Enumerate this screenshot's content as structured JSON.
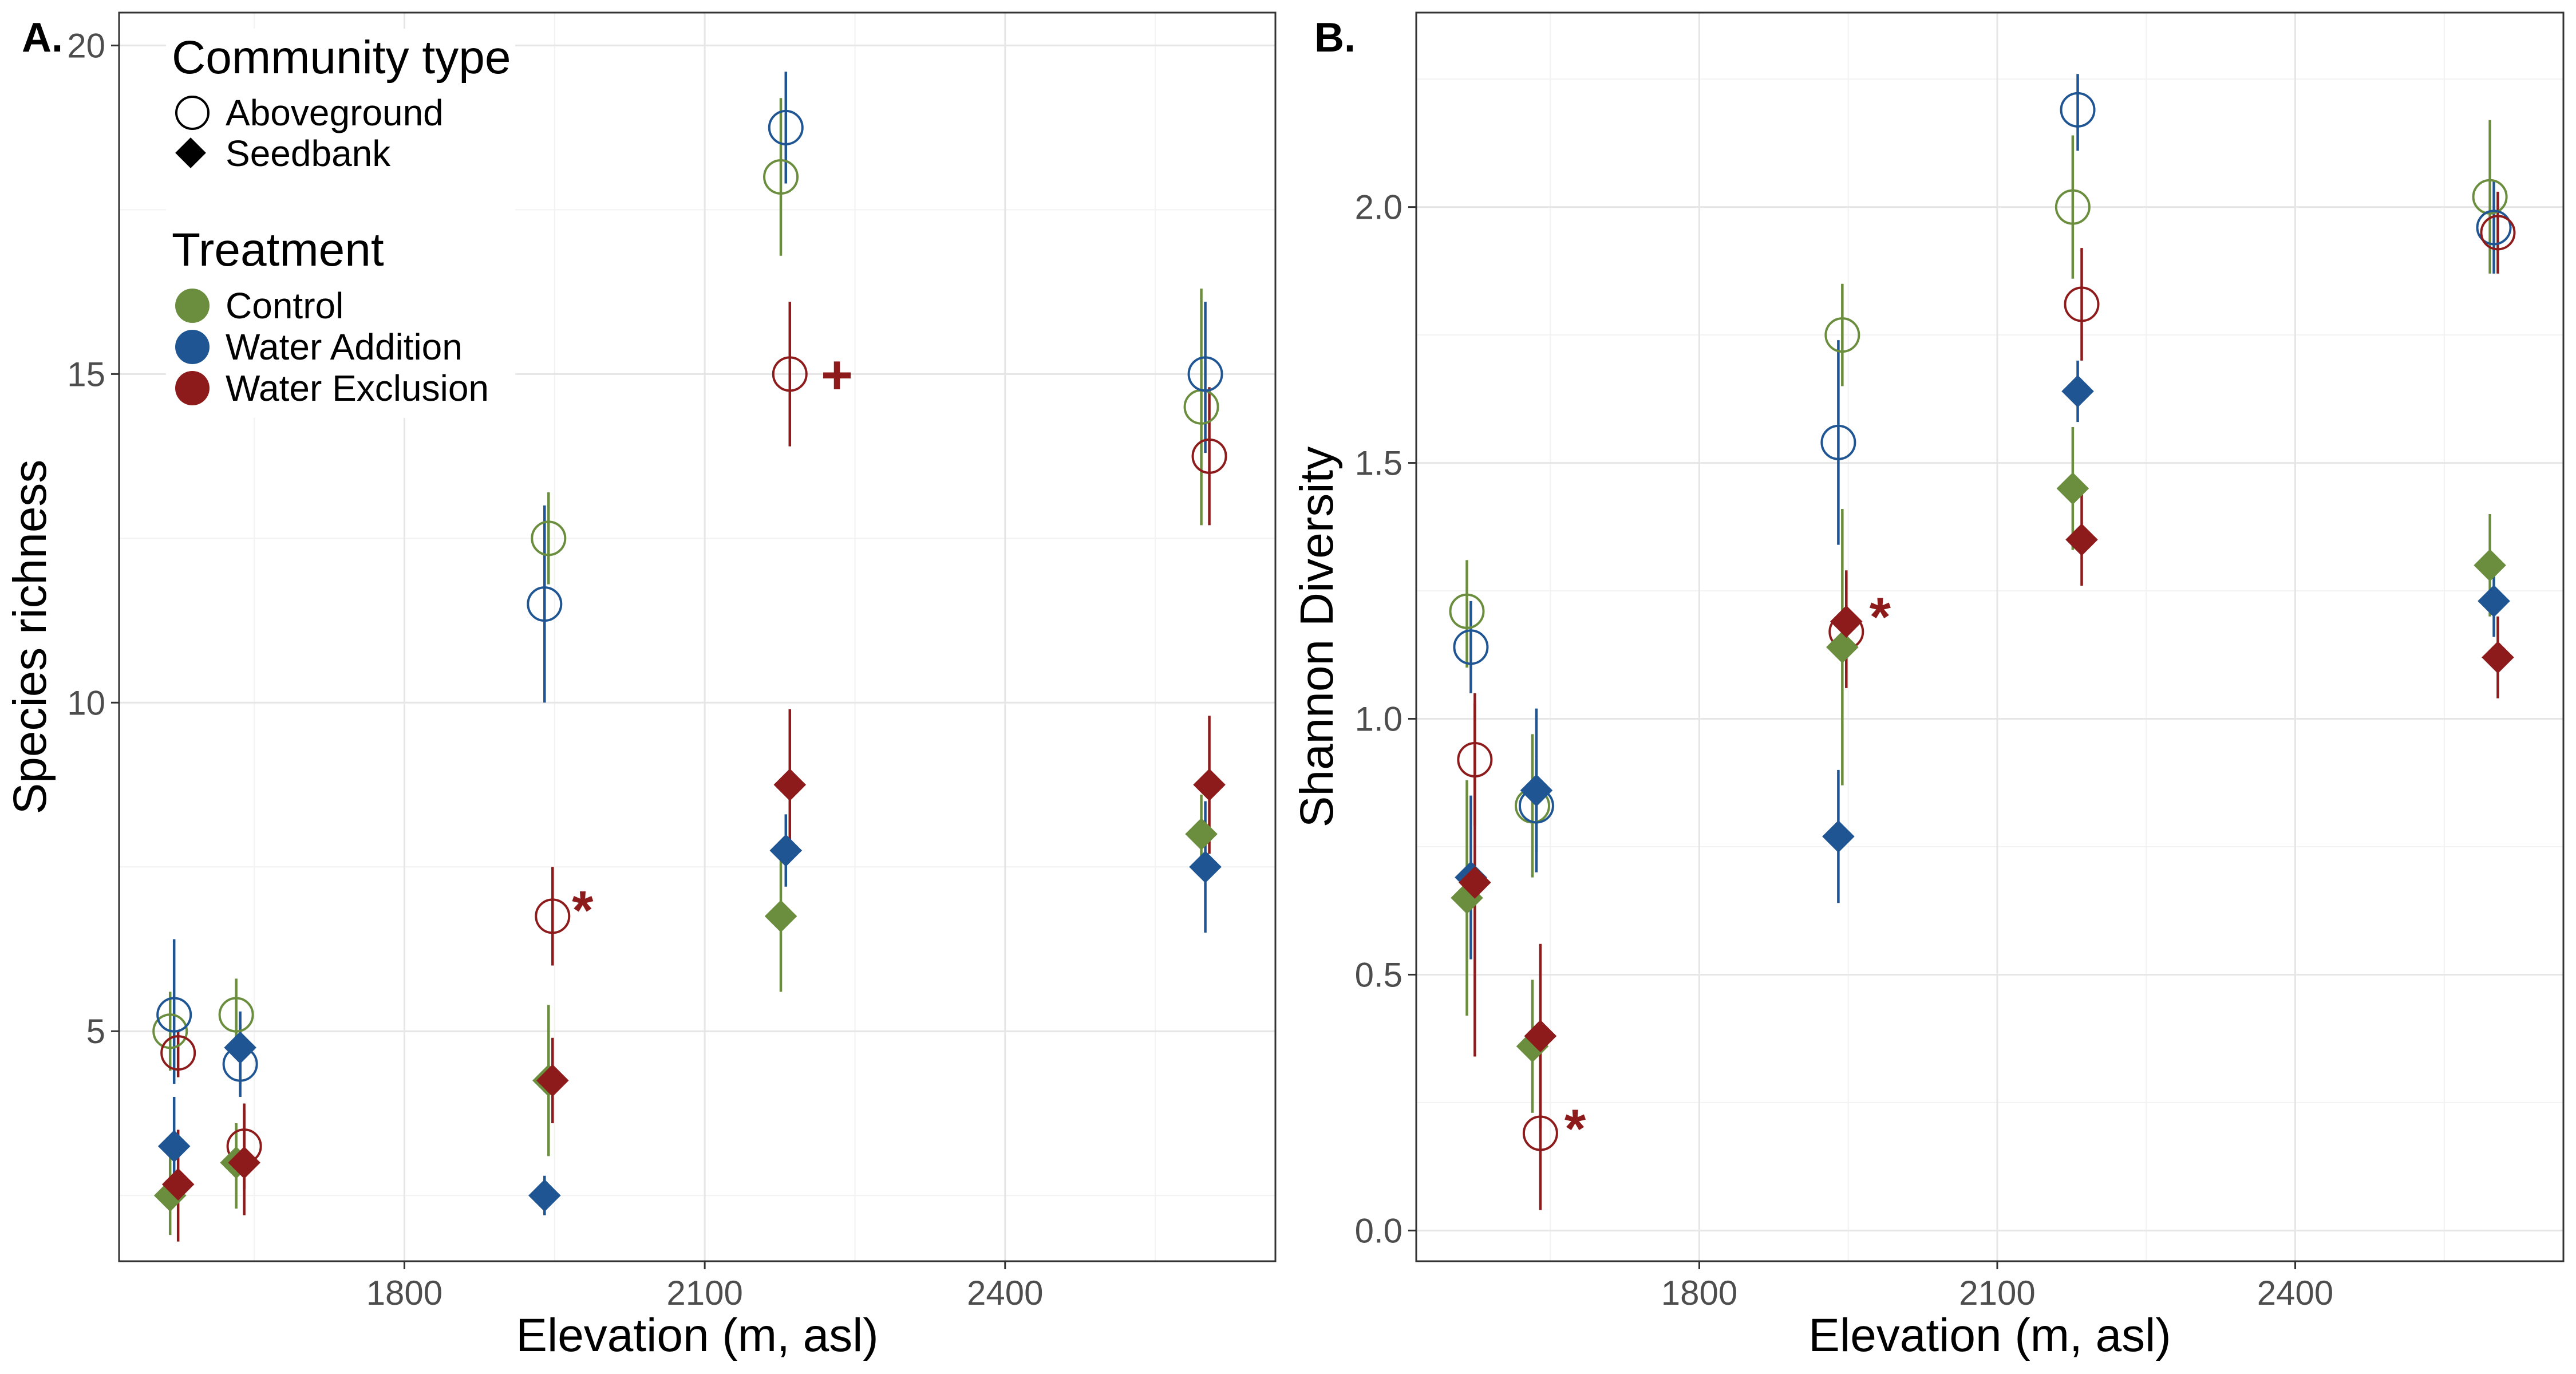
{
  "colors": {
    "Control": "#6b8e3e",
    "Water Addition": "#1f5592",
    "Water Exclusion": "#8e1b1b"
  },
  "legend": {
    "community_title": "Community type",
    "community_items": [
      "Aboveground",
      "Seedbank"
    ],
    "treatment_title": "Treatment",
    "treatment_items": [
      "Control",
      "Water Addition",
      "Water Exclusion"
    ]
  },
  "chart_data": [
    {
      "panel_label": "A.",
      "type": "scatter",
      "xlabel": "Elevation (m, asl)",
      "ylabel": "Species richness",
      "xticks": [
        "1800",
        "2100",
        "2400"
      ],
      "yticks": [
        "5",
        "10",
        "15",
        "20"
      ],
      "xlim": [
        1515,
        2670
      ],
      "ylim": [
        1.5,
        20.5
      ],
      "grid": true,
      "legend_position": "top-left",
      "series": [
        {
          "name": "Control",
          "community": "Aboveground",
          "points": [
            {
              "x": 1566,
              "y": 5.0,
              "lo": 4.4,
              "hi": 5.6
            },
            {
              "x": 1632,
              "y": 5.25,
              "lo": 4.7,
              "hi": 5.8
            },
            {
              "x": 1944,
              "y": 12.5,
              "lo": 11.8,
              "hi": 13.2
            },
            {
              "x": 2176,
              "y": 18.0,
              "lo": 16.8,
              "hi": 19.2
            },
            {
              "x": 2596,
              "y": 14.5,
              "lo": 12.7,
              "hi": 16.3
            }
          ]
        },
        {
          "name": "Water Addition",
          "community": "Aboveground",
          "points": [
            {
              "x": 1570,
              "y": 5.25,
              "lo": 4.2,
              "hi": 6.4
            },
            {
              "x": 1636,
              "y": 4.5,
              "lo": 4.0,
              "hi": 5.1
            },
            {
              "x": 1940,
              "y": 11.5,
              "lo": 10.0,
              "hi": 13.0
            },
            {
              "x": 2181,
              "y": 18.75,
              "lo": 17.9,
              "hi": 19.6
            },
            {
              "x": 2600,
              "y": 15.0,
              "lo": 13.8,
              "hi": 16.1
            }
          ]
        },
        {
          "name": "Water Exclusion",
          "community": "Aboveground",
          "points": [
            {
              "x": 1574,
              "y": 4.67,
              "lo": 4.3,
              "hi": 5.0
            },
            {
              "x": 1640,
              "y": 3.25,
              "lo": 2.6,
              "hi": 3.9
            },
            {
              "x": 1948,
              "y": 6.75,
              "lo": 6.0,
              "hi": 7.5
            },
            {
              "x": 2185,
              "y": 15.0,
              "lo": 13.9,
              "hi": 16.1
            },
            {
              "x": 2604,
              "y": 13.75,
              "lo": 12.7,
              "hi": 14.8
            }
          ]
        },
        {
          "name": "Control",
          "community": "Seedbank",
          "points": [
            {
              "x": 1566,
              "y": 2.5,
              "lo": 1.9,
              "hi": 3.1
            },
            {
              "x": 1632,
              "y": 3.0,
              "lo": 2.3,
              "hi": 3.6
            },
            {
              "x": 1944,
              "y": 4.25,
              "lo": 3.1,
              "hi": 5.4
            },
            {
              "x": 2176,
              "y": 6.75,
              "lo": 5.6,
              "hi": 7.9
            },
            {
              "x": 2596,
              "y": 8.0,
              "lo": 7.4,
              "hi": 8.6
            }
          ]
        },
        {
          "name": "Water Addition",
          "community": "Seedbank",
          "points": [
            {
              "x": 1570,
              "y": 3.25,
              "lo": 2.6,
              "hi": 4.0
            },
            {
              "x": 1636,
              "y": 4.75,
              "lo": 4.2,
              "hi": 5.3
            },
            {
              "x": 1940,
              "y": 2.5,
              "lo": 2.2,
              "hi": 2.8
            },
            {
              "x": 2181,
              "y": 7.75,
              "lo": 7.2,
              "hi": 8.3
            },
            {
              "x": 2600,
              "y": 7.5,
              "lo": 6.5,
              "hi": 8.5
            }
          ]
        },
        {
          "name": "Water Exclusion",
          "community": "Seedbank",
          "points": [
            {
              "x": 1574,
              "y": 2.67,
              "lo": 1.8,
              "hi": 3.5
            },
            {
              "x": 1640,
              "y": 3.0,
              "lo": 2.2,
              "hi": 3.8
            },
            {
              "x": 1948,
              "y": 4.25,
              "lo": 3.6,
              "hi": 4.9
            },
            {
              "x": 2185,
              "y": 8.75,
              "lo": 7.6,
              "hi": 9.9
            },
            {
              "x": 2604,
              "y": 8.75,
              "lo": 7.7,
              "hi": 9.8
            }
          ]
        }
      ],
      "annotations": [
        {
          "text": "*",
          "x": 1978,
          "y": 6.85,
          "series": "Water Exclusion"
        },
        {
          "text": "+",
          "x": 2232,
          "y": 15.0,
          "series": "Water Exclusion"
        }
      ]
    },
    {
      "panel_label": "B.",
      "type": "scatter",
      "xlabel": "Elevation (m, asl)",
      "ylabel": "Shannon Diversity",
      "xticks": [
        "1800",
        "2100",
        "2400"
      ],
      "yticks": [
        "0.0",
        "0.5",
        "1.0",
        "1.5",
        "2.0"
      ],
      "xlim": [
        1515,
        2670
      ],
      "ylim": [
        -0.06,
        2.38
      ],
      "grid": true,
      "legend_position": "none",
      "series": [
        {
          "name": "Control",
          "community": "Aboveground",
          "points": [
            {
              "x": 1566,
              "y": 1.21,
              "lo": 1.1,
              "hi": 1.31
            },
            {
              "x": 1632,
              "y": 0.83,
              "lo": 0.69,
              "hi": 0.97
            },
            {
              "x": 1944,
              "y": 1.75,
              "lo": 1.65,
              "hi": 1.85
            },
            {
              "x": 2176,
              "y": 2.0,
              "lo": 1.86,
              "hi": 2.14
            },
            {
              "x": 2596,
              "y": 2.02,
              "lo": 1.87,
              "hi": 2.17
            }
          ]
        },
        {
          "name": "Water Addition",
          "community": "Aboveground",
          "points": [
            {
              "x": 1570,
              "y": 1.14,
              "lo": 1.05,
              "hi": 1.23
            },
            {
              "x": 1636,
              "y": 0.83,
              "lo": 0.74,
              "hi": 0.92
            },
            {
              "x": 1940,
              "y": 1.54,
              "lo": 1.34,
              "hi": 1.74
            },
            {
              "x": 2181,
              "y": 2.19,
              "lo": 2.11,
              "hi": 2.26
            },
            {
              "x": 2600,
              "y": 1.96,
              "lo": 1.87,
              "hi": 2.05
            }
          ]
        },
        {
          "name": "Water Exclusion",
          "community": "Aboveground",
          "points": [
            {
              "x": 1574,
              "y": 0.92,
              "lo": 0.79,
              "hi": 1.05
            },
            {
              "x": 1640,
              "y": 0.19,
              "lo": 0.04,
              "hi": 0.35
            },
            {
              "x": 1948,
              "y": 1.17,
              "lo": 1.06,
              "hi": 1.28
            },
            {
              "x": 2185,
              "y": 1.81,
              "lo": 1.7,
              "hi": 1.92
            },
            {
              "x": 2604,
              "y": 1.95,
              "lo": 1.87,
              "hi": 2.03
            }
          ]
        },
        {
          "name": "Control",
          "community": "Seedbank",
          "points": [
            {
              "x": 1566,
              "y": 0.65,
              "lo": 0.42,
              "hi": 0.88
            },
            {
              "x": 1632,
              "y": 0.36,
              "lo": 0.23,
              "hi": 0.49
            },
            {
              "x": 1944,
              "y": 1.14,
              "lo": 0.87,
              "hi": 1.41
            },
            {
              "x": 2176,
              "y": 1.45,
              "lo": 1.33,
              "hi": 1.57
            },
            {
              "x": 2596,
              "y": 1.3,
              "lo": 1.2,
              "hi": 1.4
            }
          ]
        },
        {
          "name": "Water Addition",
          "community": "Seedbank",
          "points": [
            {
              "x": 1570,
              "y": 0.69,
              "lo": 0.53,
              "hi": 0.85
            },
            {
              "x": 1636,
              "y": 0.86,
              "lo": 0.7,
              "hi": 1.02
            },
            {
              "x": 1940,
              "y": 0.77,
              "lo": 0.64,
              "hi": 0.9
            },
            {
              "x": 2181,
              "y": 1.64,
              "lo": 1.58,
              "hi": 1.7
            },
            {
              "x": 2600,
              "y": 1.23,
              "lo": 1.16,
              "hi": 1.3
            }
          ]
        },
        {
          "name": "Water Exclusion",
          "community": "Seedbank",
          "points": [
            {
              "x": 1574,
              "y": 0.68,
              "lo": 0.34,
              "hi": 1.03
            },
            {
              "x": 1640,
              "y": 0.38,
              "lo": 0.2,
              "hi": 0.56
            },
            {
              "x": 1948,
              "y": 1.19,
              "lo": 1.09,
              "hi": 1.29
            },
            {
              "x": 2185,
              "y": 1.35,
              "lo": 1.26,
              "hi": 1.44
            },
            {
              "x": 2604,
              "y": 1.12,
              "lo": 1.04,
              "hi": 1.2
            }
          ]
        }
      ],
      "annotations": [
        {
          "text": "*",
          "x": 1675,
          "y": 0.2,
          "series": "Water Exclusion"
        },
        {
          "text": "*",
          "x": 1982,
          "y": 1.2,
          "series": "Water Exclusion"
        }
      ]
    }
  ]
}
